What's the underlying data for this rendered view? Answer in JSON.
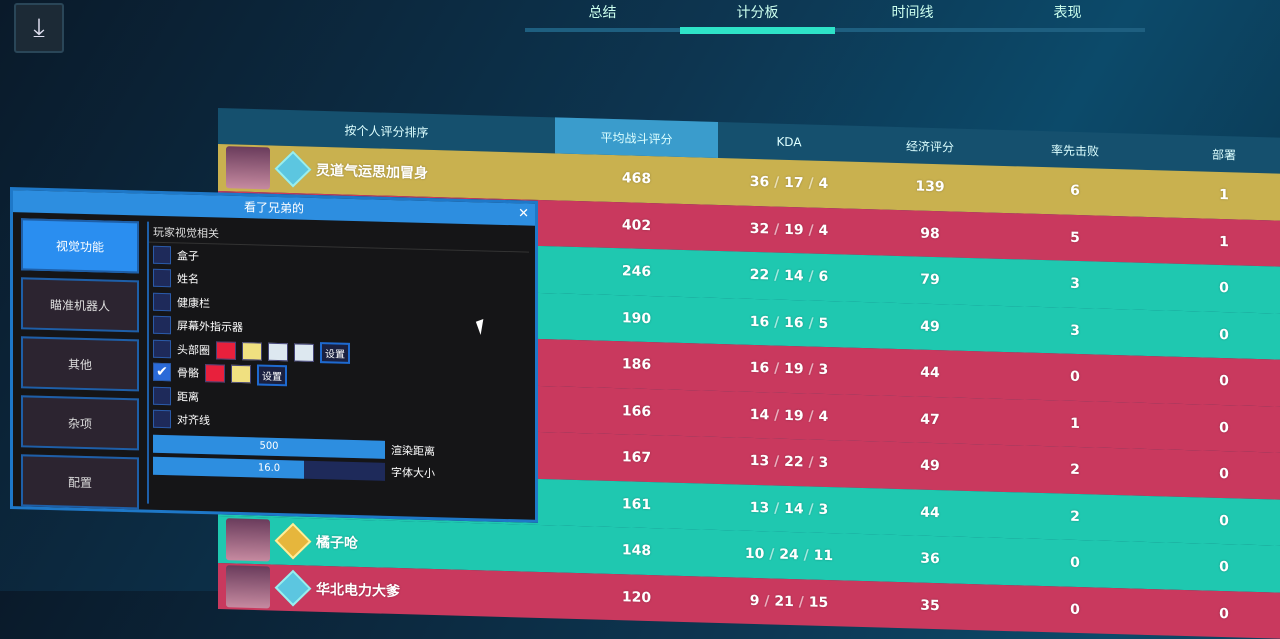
{
  "tabs": [
    {
      "label": "总结"
    },
    {
      "label": "计分板",
      "active": true
    },
    {
      "label": "时间线"
    },
    {
      "label": "表现"
    }
  ],
  "scoreboard": {
    "headers": {
      "sort": "按个人评分排序",
      "acs": "平均战斗评分",
      "kda": "KDA",
      "econ": "经济评分",
      "first_bloods": "率先击败",
      "plants": "部署"
    },
    "rows": [
      {
        "team": "gold",
        "name": "灵道气运思加冒身",
        "acs": "468",
        "k": "36",
        "d": "17",
        "a": "4",
        "econ": "139",
        "fb": "6",
        "pl": "1"
      },
      {
        "team": "red",
        "name": "",
        "acs": "402",
        "k": "32",
        "d": "19",
        "a": "4",
        "econ": "98",
        "fb": "5",
        "pl": "1"
      },
      {
        "team": "teal",
        "name": "",
        "acs": "246",
        "k": "22",
        "d": "14",
        "a": "6",
        "econ": "79",
        "fb": "3",
        "pl": "0"
      },
      {
        "team": "teal",
        "name": "",
        "acs": "190",
        "k": "16",
        "d": "16",
        "a": "5",
        "econ": "49",
        "fb": "3",
        "pl": "0"
      },
      {
        "team": "red",
        "name": "",
        "acs": "186",
        "k": "16",
        "d": "19",
        "a": "3",
        "econ": "44",
        "fb": "0",
        "pl": "0"
      },
      {
        "team": "red",
        "name": "",
        "acs": "166",
        "k": "14",
        "d": "19",
        "a": "4",
        "econ": "47",
        "fb": "1",
        "pl": "0"
      },
      {
        "team": "red",
        "name": "",
        "acs": "167",
        "k": "13",
        "d": "22",
        "a": "3",
        "econ": "49",
        "fb": "2",
        "pl": "0"
      },
      {
        "team": "teal",
        "name": "",
        "acs": "161",
        "k": "13",
        "d": "14",
        "a": "3",
        "econ": "44",
        "fb": "2",
        "pl": "0"
      },
      {
        "team": "teal",
        "name": "橘子呛",
        "acs": "148",
        "k": "10",
        "d": "24",
        "a": "11",
        "econ": "36",
        "fb": "0",
        "pl": "0"
      },
      {
        "team": "red",
        "name": "华北电力大爹",
        "acs": "120",
        "k": "9",
        "d": "21",
        "a": "15",
        "econ": "35",
        "fb": "0",
        "pl": "0"
      }
    ]
  },
  "menu": {
    "title": "看了兄弟的",
    "close": "✕",
    "sidebar": [
      {
        "label": "视觉功能",
        "active": true
      },
      {
        "label": "瞄准机器人"
      },
      {
        "label": "其他"
      },
      {
        "label": "杂项"
      },
      {
        "label": "配置"
      }
    ],
    "section": "玩家视觉相关",
    "options": [
      {
        "label": "盒子",
        "checked": false
      },
      {
        "label": "姓名",
        "checked": false
      },
      {
        "label": "健康栏",
        "checked": false
      },
      {
        "label": "屏幕外指示器",
        "checked": false
      },
      {
        "label": "头部圈",
        "checked": false,
        "colors": [
          "#e8203c",
          "#f0e080",
          "#dde8f0",
          "#dde8f0"
        ],
        "set": "设置"
      },
      {
        "label": "骨骼",
        "checked": true,
        "colors": [
          "#e8203c",
          "#f0e080"
        ],
        "set": "设置"
      },
      {
        "label": "距离",
        "checked": false
      },
      {
        "label": "对齐线",
        "checked": false
      }
    ],
    "sliders": [
      {
        "value": "500",
        "label": "渲染距离",
        "fill": 1.0
      },
      {
        "value": "16.0",
        "label": "字体大小",
        "fill": 0.65
      }
    ]
  },
  "check_glyph": "✔",
  "download_icon": "⤓"
}
